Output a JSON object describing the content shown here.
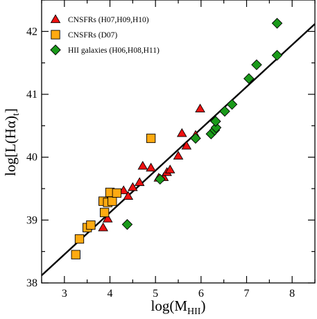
{
  "chart_data": {
    "type": "scatter",
    "title": "",
    "xlabel": "log(M_HII)",
    "ylabel": "log[L(Hα)_t]",
    "xlim": [
      2.5,
      8.5
    ],
    "ylim": [
      38,
      42.5
    ],
    "xticks": [
      3,
      4,
      5,
      6,
      7,
      8
    ],
    "yticks": [
      38,
      39,
      40,
      41,
      42
    ],
    "legend_position": "top-left",
    "grid": false,
    "series": [
      {
        "name": "CNSFRs (H07,H09,H10)",
        "marker": "triangle",
        "color": "#ee1111",
        "points": [
          [
            3.85,
            38.88
          ],
          [
            3.95,
            39.02
          ],
          [
            4.3,
            39.47
          ],
          [
            4.4,
            39.38
          ],
          [
            4.5,
            39.52
          ],
          [
            4.65,
            39.6
          ],
          [
            4.72,
            39.86
          ],
          [
            4.9,
            39.83
          ],
          [
            5.07,
            39.67
          ],
          [
            5.18,
            39.68
          ],
          [
            5.25,
            39.76
          ],
          [
            5.32,
            39.8
          ],
          [
            5.5,
            40.02
          ],
          [
            5.58,
            40.38
          ],
          [
            5.68,
            40.18
          ],
          [
            5.88,
            40.35
          ],
          [
            5.98,
            40.77
          ]
        ]
      },
      {
        "name": "CNSFRs (D07)",
        "marker": "square",
        "color": "#ffaa11",
        "points": [
          [
            3.25,
            38.45
          ],
          [
            3.33,
            38.7
          ],
          [
            3.5,
            38.88
          ],
          [
            3.58,
            38.92
          ],
          [
            3.85,
            39.3
          ],
          [
            3.88,
            39.12
          ],
          [
            3.95,
            39.28
          ],
          [
            4.0,
            39.44
          ],
          [
            4.05,
            39.3
          ],
          [
            4.15,
            39.43
          ],
          [
            4.9,
            40.3
          ]
        ]
      },
      {
        "name": "HII galaxies (H06,H08,H11)",
        "marker": "diamond",
        "color": "#1a9a1a",
        "points": [
          [
            4.38,
            38.93
          ],
          [
            5.1,
            39.65
          ],
          [
            5.88,
            40.3
          ],
          [
            6.22,
            40.37
          ],
          [
            6.3,
            40.43
          ],
          [
            6.33,
            40.47
          ],
          [
            6.32,
            40.57
          ],
          [
            6.52,
            40.73
          ],
          [
            6.68,
            40.84
          ],
          [
            7.05,
            41.25
          ],
          [
            7.22,
            41.47
          ],
          [
            7.67,
            41.62
          ],
          [
            7.67,
            42.13
          ]
        ]
      }
    ],
    "fit_line": {
      "type": "linear",
      "points": [
        [
          2.5,
          38.12
        ],
        [
          8.5,
          42.12
        ]
      ]
    }
  }
}
